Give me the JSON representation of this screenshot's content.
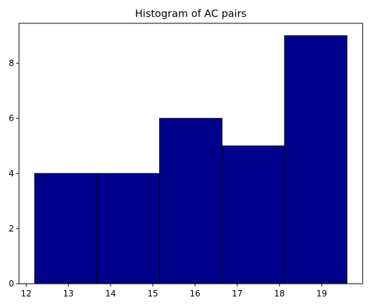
{
  "chart_data": {
    "type": "bar",
    "title": "Histogram of AC pairs",
    "xlabel": "",
    "ylabel": "",
    "bins": [
      {
        "x0": 12.2,
        "x1": 13.68,
        "count": 4
      },
      {
        "x0": 13.68,
        "x1": 15.16,
        "count": 4
      },
      {
        "x0": 15.16,
        "x1": 16.64,
        "count": 6
      },
      {
        "x0": 16.64,
        "x1": 18.12,
        "count": 5
      },
      {
        "x0": 18.12,
        "x1": 19.6,
        "count": 9
      }
    ],
    "xlim": [
      11.83,
      19.97
    ],
    "ylim": [
      0,
      9.45
    ],
    "xticks": [
      12,
      13,
      14,
      15,
      16,
      17,
      18,
      19
    ],
    "yticks": [
      0,
      2,
      4,
      6,
      8
    ],
    "bar_color": "#00008B",
    "edge_color": "#000000",
    "grid": false,
    "legend": "none"
  }
}
